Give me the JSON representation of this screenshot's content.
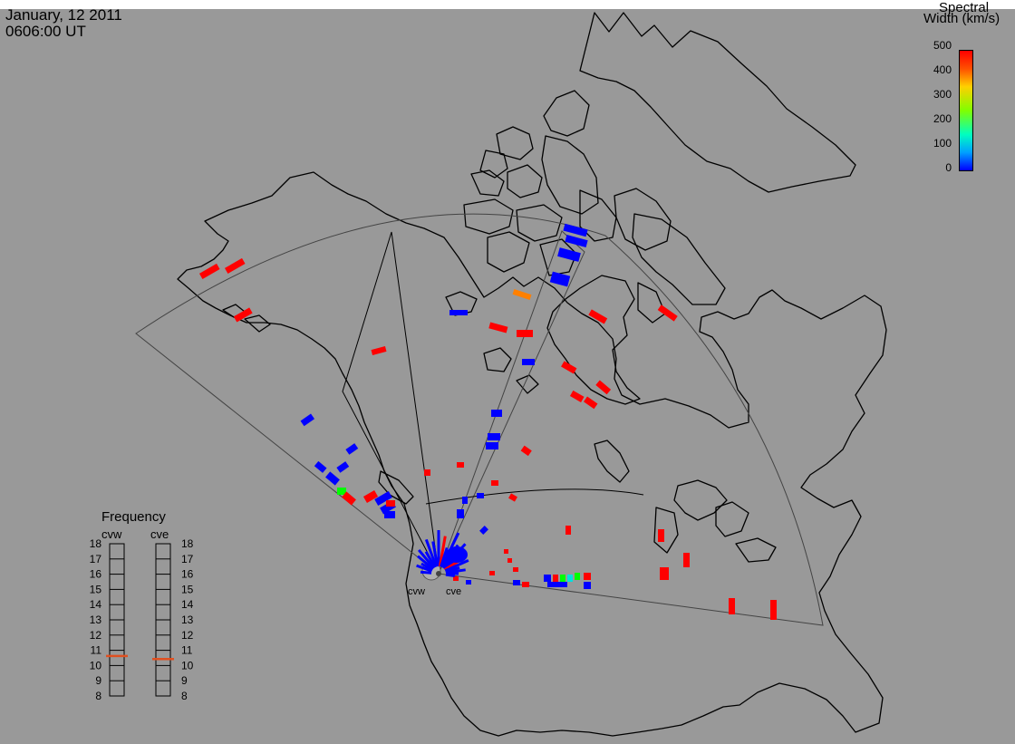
{
  "header": {
    "date": "January, 12 2011",
    "time": "0606:00 UT"
  },
  "colorbar": {
    "title_line1": "Spectral",
    "title_line2": "Width (km/s)",
    "ticks": [
      "500",
      "400",
      "300",
      "200",
      "100",
      "0"
    ],
    "colors": [
      "#0000ff",
      "#00c8ff",
      "#00e600",
      "#ffe600",
      "#ff8c00",
      "#ff0000"
    ]
  },
  "radars": [
    {
      "code": "cvw",
      "frequency_mhz": 10.7
    },
    {
      "code": "cve",
      "frequency_mhz": 10.5
    }
  ],
  "frequency_panel": {
    "title": "Frequency",
    "labels": [
      "cvw",
      "cve"
    ],
    "scale": [
      "18",
      "17",
      "16",
      "15",
      "14",
      "13",
      "12",
      "11",
      "10",
      "9",
      "8"
    ]
  },
  "colors": {
    "background": "#999999",
    "coast": "#000000",
    "fov": "#444444",
    "red": "#ff0000",
    "blue": "#0000ff",
    "orange": "#ff8000",
    "green": "#00ff00",
    "cyan": "#00e0e0",
    "freq_marker": "#e05020"
  }
}
